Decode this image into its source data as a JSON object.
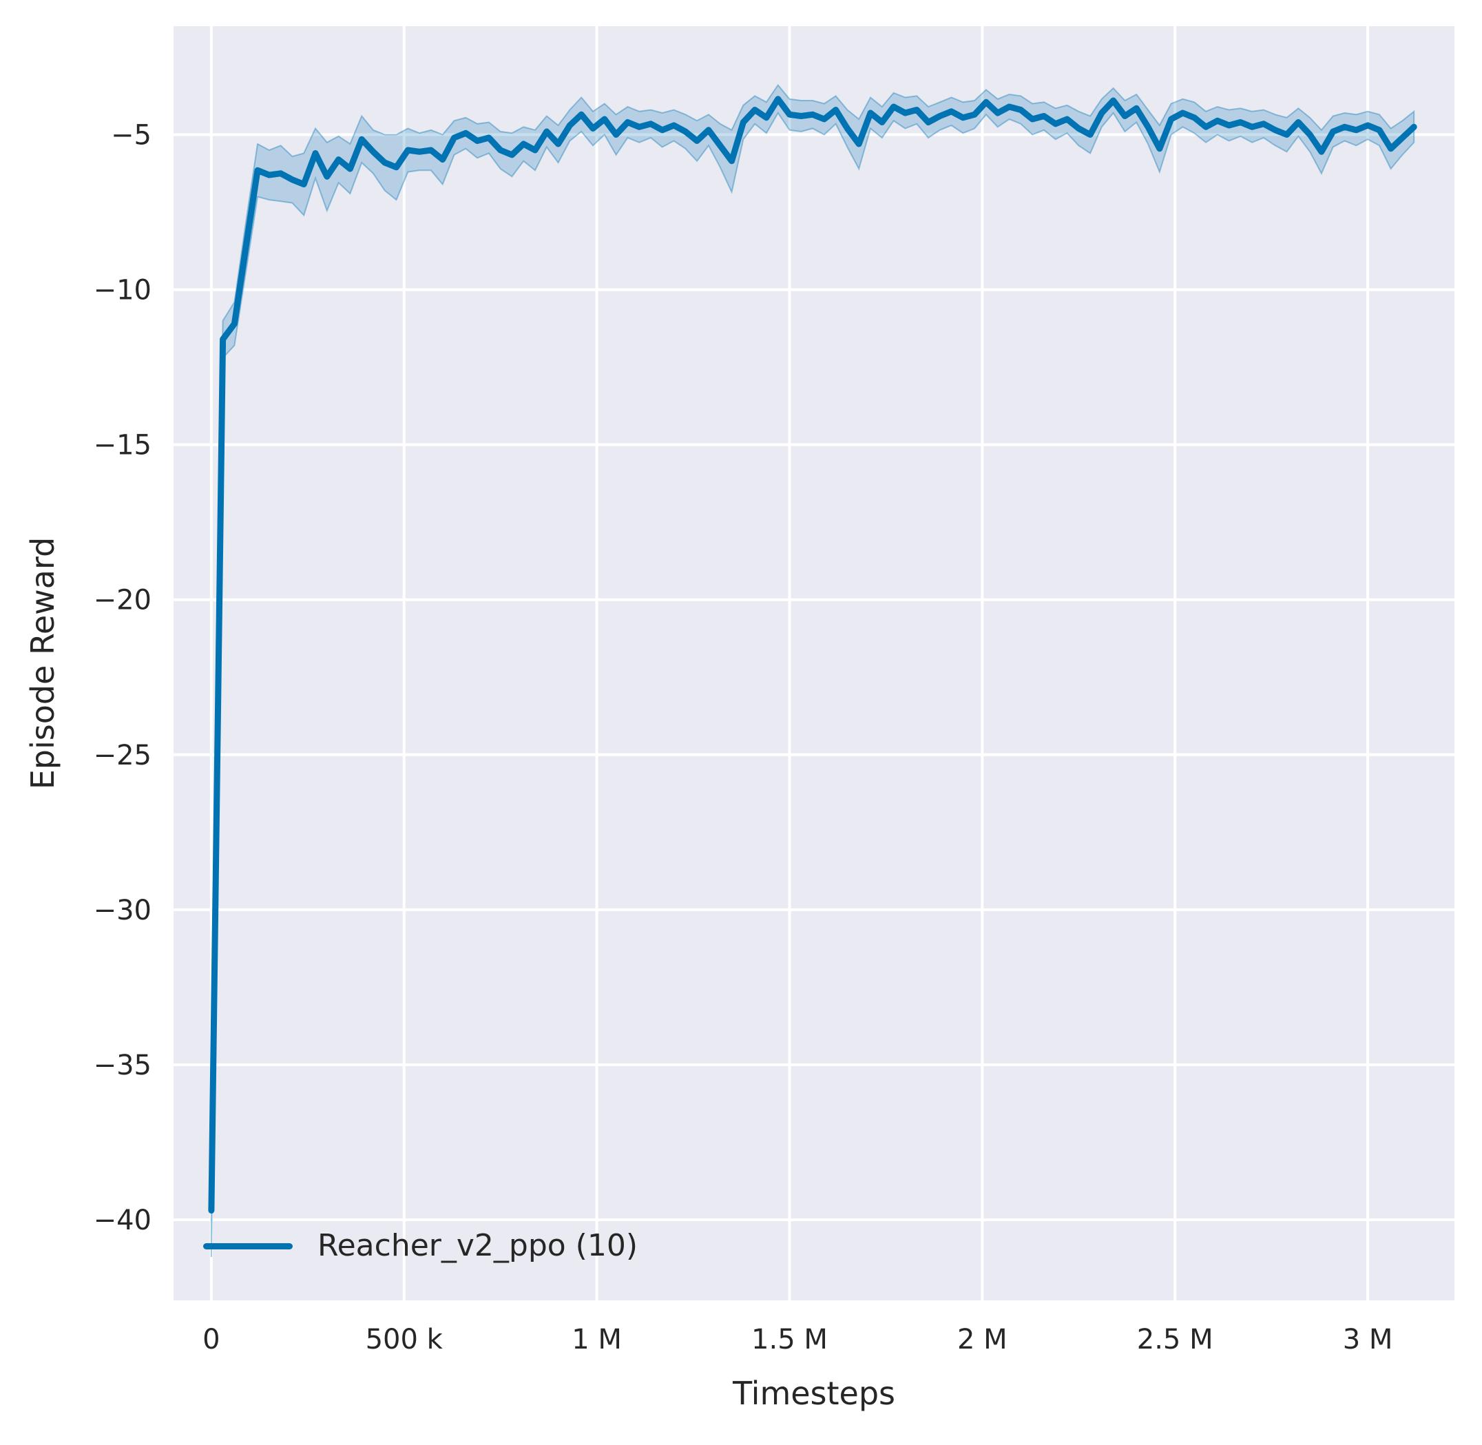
{
  "figure": {
    "background": "#ffffff",
    "axes_background": "#eaeaf2",
    "grid_color": "#ffffff",
    "tick_label_color": "#262626",
    "axis_label_color": "#262626"
  },
  "chart_data": {
    "type": "line",
    "title": "",
    "xlabel": "Timesteps",
    "ylabel": "Episode Reward",
    "grid": true,
    "legend_position": "lower left",
    "xlim": [
      -98000,
      3225000
    ],
    "ylim": [
      -42.6,
      -1.5
    ],
    "x_ticks": [
      {
        "value": 0,
        "label": "0"
      },
      {
        "value": 500000,
        "label": "500 k"
      },
      {
        "value": 1000000,
        "label": "1 M"
      },
      {
        "value": 1500000,
        "label": "1.5 M"
      },
      {
        "value": 2000000,
        "label": "2 M"
      },
      {
        "value": 2500000,
        "label": "2.5 M"
      },
      {
        "value": 3000000,
        "label": "3 M"
      }
    ],
    "y_ticks": [
      {
        "value": -5,
        "label": "−5"
      },
      {
        "value": -10,
        "label": "−10"
      },
      {
        "value": -15,
        "label": "−15"
      },
      {
        "value": -20,
        "label": "−20"
      },
      {
        "value": -25,
        "label": "−25"
      },
      {
        "value": -30,
        "label": "−30"
      },
      {
        "value": -35,
        "label": "−35"
      },
      {
        "value": -40,
        "label": "−40"
      }
    ],
    "series": [
      {
        "name": "Reacher_v2_ppo (10)",
        "color": "#0173b2",
        "band_fill_opacity": 0.22,
        "band_edge_opacity": 0.38,
        "line_width": 9,
        "x": [
          0,
          30000,
          60000,
          90000,
          120000,
          150000,
          180000,
          210000,
          240000,
          270000,
          300000,
          330000,
          360000,
          390000,
          420000,
          450000,
          480000,
          510000,
          540000,
          570000,
          600000,
          630000,
          660000,
          690000,
          720000,
          750000,
          780000,
          810000,
          840000,
          870000,
          900000,
          930000,
          960000,
          990000,
          1020000,
          1050000,
          1080000,
          1110000,
          1140000,
          1170000,
          1200000,
          1230000,
          1260000,
          1290000,
          1320000,
          1350000,
          1380000,
          1410000,
          1440000,
          1470000,
          1500000,
          1530000,
          1560000,
          1590000,
          1620000,
          1650000,
          1680000,
          1710000,
          1740000,
          1770000,
          1800000,
          1830000,
          1860000,
          1890000,
          1920000,
          1950000,
          1980000,
          2010000,
          2040000,
          2070000,
          2100000,
          2130000,
          2160000,
          2190000,
          2220000,
          2250000,
          2280000,
          2310000,
          2340000,
          2370000,
          2400000,
          2430000,
          2460000,
          2490000,
          2520000,
          2550000,
          2580000,
          2610000,
          2640000,
          2670000,
          2700000,
          2730000,
          2760000,
          2790000,
          2820000,
          2850000,
          2880000,
          2910000,
          2940000,
          2970000,
          3000000,
          3030000,
          3060000,
          3090000,
          3120000
        ],
        "y": [
          -39.7,
          -11.6,
          -11.1,
          -8.6,
          -6.15,
          -6.3,
          -6.25,
          -6.45,
          -6.6,
          -5.6,
          -6.35,
          -5.8,
          -6.1,
          -5.15,
          -5.55,
          -5.9,
          -6.05,
          -5.5,
          -5.55,
          -5.5,
          -5.8,
          -5.1,
          -4.95,
          -5.2,
          -5.1,
          -5.5,
          -5.65,
          -5.3,
          -5.5,
          -4.9,
          -5.3,
          -4.7,
          -4.35,
          -4.8,
          -4.5,
          -5.0,
          -4.6,
          -4.75,
          -4.65,
          -4.85,
          -4.7,
          -4.9,
          -5.2,
          -4.85,
          -5.35,
          -5.85,
          -4.6,
          -4.2,
          -4.45,
          -3.85,
          -4.35,
          -4.4,
          -4.35,
          -4.5,
          -4.2,
          -4.8,
          -5.3,
          -4.3,
          -4.6,
          -4.1,
          -4.3,
          -4.2,
          -4.6,
          -4.4,
          -4.25,
          -4.45,
          -4.35,
          -3.95,
          -4.3,
          -4.1,
          -4.2,
          -4.5,
          -4.4,
          -4.65,
          -4.5,
          -4.8,
          -5.0,
          -4.3,
          -3.9,
          -4.4,
          -4.15,
          -4.75,
          -5.45,
          -4.5,
          -4.3,
          -4.45,
          -4.75,
          -4.55,
          -4.7,
          -4.6,
          -4.75,
          -4.65,
          -4.85,
          -5.0,
          -4.6,
          -5.0,
          -5.55,
          -4.9,
          -4.75,
          -4.85,
          -4.7,
          -4.85,
          -5.45,
          -5.1,
          -4.75
        ],
        "band_halfwidth": [
          1.5,
          0.6,
          0.7,
          0.8,
          0.85,
          0.8,
          0.9,
          0.75,
          1.0,
          0.8,
          1.1,
          0.75,
          0.8,
          0.75,
          0.7,
          0.9,
          1.05,
          0.7,
          0.6,
          0.65,
          0.8,
          0.55,
          0.5,
          0.55,
          0.5,
          0.6,
          0.7,
          0.55,
          0.65,
          0.5,
          0.6,
          0.5,
          0.55,
          0.55,
          0.5,
          0.65,
          0.5,
          0.5,
          0.45,
          0.55,
          0.5,
          0.55,
          0.65,
          0.5,
          0.7,
          1.0,
          0.55,
          0.45,
          0.5,
          0.45,
          0.5,
          0.5,
          0.45,
          0.5,
          0.45,
          0.6,
          0.8,
          0.5,
          0.5,
          0.45,
          0.5,
          0.45,
          0.5,
          0.45,
          0.45,
          0.5,
          0.45,
          0.4,
          0.45,
          0.4,
          0.45,
          0.5,
          0.45,
          0.5,
          0.45,
          0.55,
          0.6,
          0.45,
          0.4,
          0.5,
          0.45,
          0.55,
          0.75,
          0.5,
          0.45,
          0.5,
          0.5,
          0.45,
          0.5,
          0.45,
          0.5,
          0.45,
          0.5,
          0.55,
          0.45,
          0.55,
          0.7,
          0.5,
          0.45,
          0.5,
          0.45,
          0.5,
          0.65,
          0.55,
          0.5
        ]
      }
    ]
  }
}
